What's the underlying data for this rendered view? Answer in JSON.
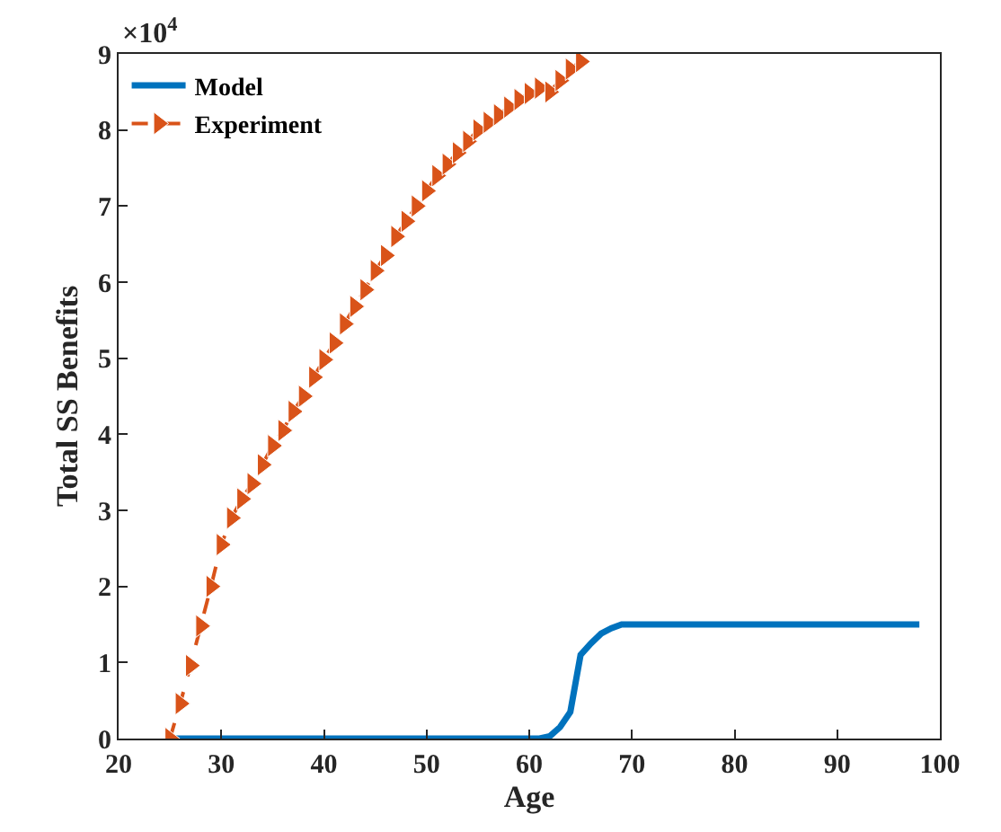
{
  "chart_data": {
    "type": "line",
    "xlabel": "Age",
    "ylabel": "Total SS Benefits",
    "annotations": [
      "×10$^{4}$"
    ],
    "xlim": [
      20,
      100
    ],
    "xticks": [
      20,
      30,
      40,
      50,
      60,
      70,
      80,
      90,
      100
    ],
    "ylim": [
      0,
      9
    ],
    "yticks": [
      0,
      1,
      2,
      3,
      4,
      5,
      6,
      7,
      8,
      9
    ],
    "legend": "top left",
    "series": [
      {
        "name": "Model",
        "color": "#0072bd",
        "line_style": "solid",
        "marker": "none",
        "x": [
          25,
          61,
          62,
          63,
          64,
          65,
          66,
          67,
          68,
          69,
          70,
          98
        ],
        "values": [
          0,
          0,
          0.03,
          0.15,
          0.35,
          1.1,
          1.25,
          1.38,
          1.45,
          1.5,
          1.5,
          1.5
        ]
      },
      {
        "name": "Experiment",
        "color": "#d95319",
        "line_style": "dashed",
        "marker": "triangle",
        "x": [
          25,
          26,
          27,
          28,
          29,
          30,
          31,
          32,
          33,
          34,
          35,
          36,
          37,
          38,
          39,
          40,
          41,
          42,
          43,
          44,
          45,
          46,
          47,
          48,
          49,
          50,
          51,
          52,
          53,
          54,
          55,
          56,
          57,
          58,
          59,
          60,
          61,
          62,
          63,
          64,
          65
        ],
        "values": [
          0,
          0.46,
          0.96,
          1.48,
          2.0,
          2.55,
          2.9,
          3.15,
          3.35,
          3.6,
          3.85,
          4.05,
          4.3,
          4.5,
          4.75,
          4.98,
          5.2,
          5.45,
          5.68,
          5.9,
          6.15,
          6.35,
          6.6,
          6.8,
          7.0,
          7.2,
          7.4,
          7.55,
          7.7,
          7.85,
          8.0,
          8.1,
          8.2,
          8.3,
          8.4,
          8.48,
          8.55,
          8.5,
          8.65,
          8.8,
          8.9
        ]
      }
    ]
  }
}
